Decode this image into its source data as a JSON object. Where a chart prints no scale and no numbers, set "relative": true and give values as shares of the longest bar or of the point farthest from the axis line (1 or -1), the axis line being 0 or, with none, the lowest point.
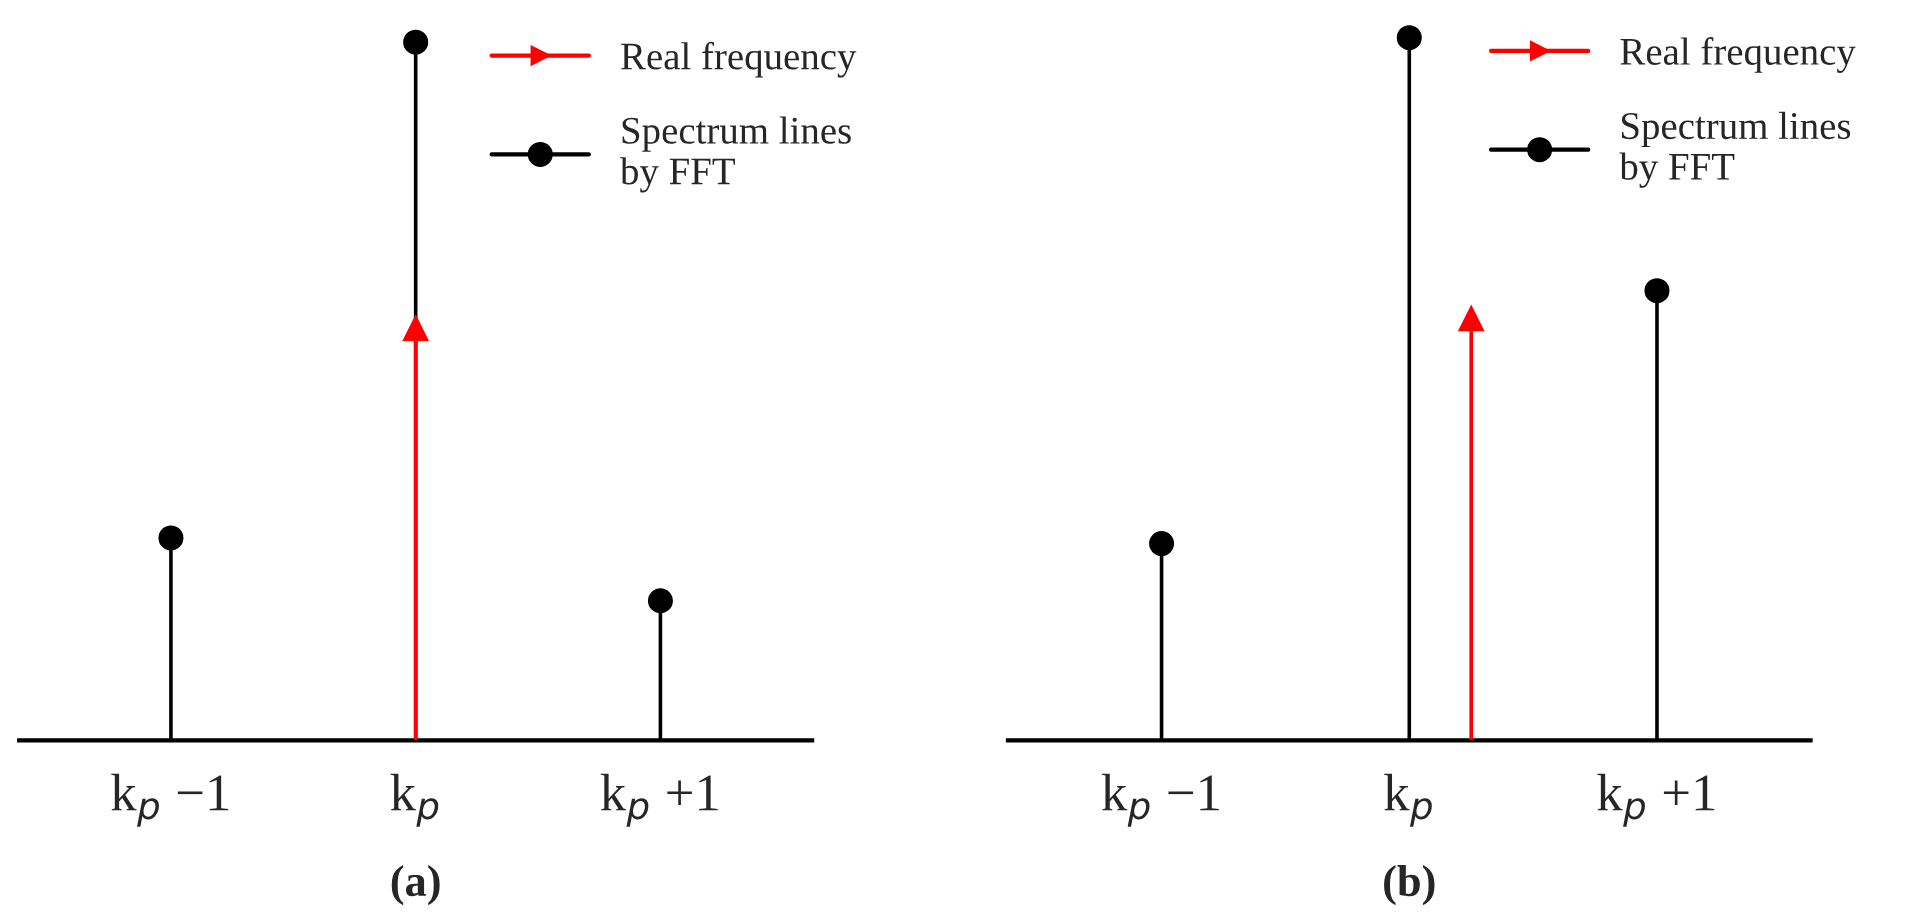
{
  "chart_data": [
    {
      "type": "lollipop",
      "relative": true,
      "categories": [
        "k$_{p}$ −1",
        "k$_{p}$",
        "k$_{p}$ +1"
      ],
      "legend": "top right",
      "grid": false,
      "annotations": [
        "(a)"
      ],
      "series": [
        {
          "name": "Real frequency",
          "color": "#ff0000",
          "marker": "triangle",
          "values": [
            null,
            0.59,
            null
          ]
        },
        {
          "name": "Spectrum lines\nby FFT",
          "color": "#000000",
          "marker": "circle",
          "values": [
            0.29,
            1,
            0.2
          ]
        }
      ]
    },
    {
      "type": "lollipop",
      "relative": true,
      "categories": [
        "k$_{p}$ −1",
        null,
        null,
        null,
        "k$_{p}$",
        null,
        null,
        null,
        "k$_{p}$ +1"
      ],
      "legend": "top right",
      "grid": false,
      "annotations": [
        "(b)"
      ],
      "series": [
        {
          "name": "Real frequency",
          "color": "#ff0000",
          "marker": "triangle",
          "values": [
            null,
            null,
            null,
            null,
            null,
            0.6,
            null,
            null,
            null
          ]
        },
        {
          "name": "Spectrum lines\nby FFT",
          "color": "#000000",
          "marker": "circle",
          "values": [
            0.28,
            null,
            null,
            null,
            1,
            null,
            null,
            null,
            0.64
          ]
        }
      ]
    }
  ]
}
